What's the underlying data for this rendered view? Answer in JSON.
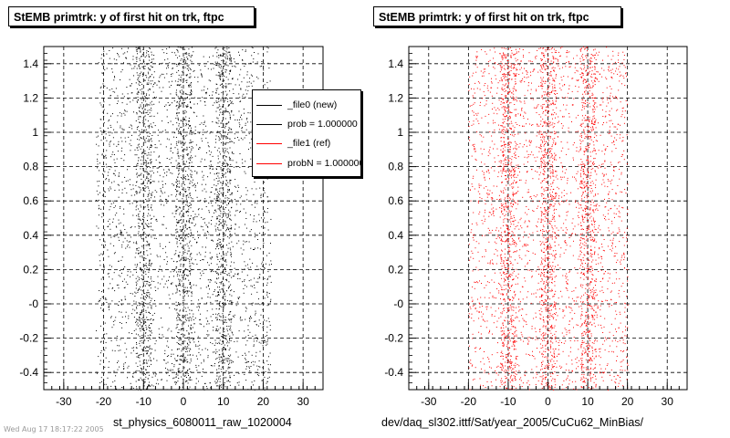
{
  "window": {
    "left_title": "StEMB primtrk: y of first hit on trk, ftpc",
    "right_title": "StEMB primtrk: y of first hit on trk, ftpc",
    "left_footer": "st_physics_6080011_raw_1020004",
    "right_footer": "dev/daq_sl302.ittf/Sat/year_2005/CuCu62_MinBias/",
    "tiny_note": "Wed Aug 17 18:17:22 2005"
  },
  "legend": {
    "entries": [
      {
        "label": "_file0 (new)",
        "color": "#000000"
      },
      {
        "label": "prob = 1.000000",
        "color": "#000000"
      },
      {
        "label": "_file1 (ref)",
        "color": "#ff0000"
      },
      {
        "label": "probN = 1.000000",
        "color": "#ff0000"
      }
    ]
  },
  "chart_data": [
    {
      "type": "scatter",
      "title": "StEMB primtrk: y of first hit on trk, ftpc",
      "xlabel": "st_physics_6080011_raw_1020004",
      "ylabel": "",
      "xlim": [
        -35,
        35
      ],
      "ylim": [
        -0.5,
        1.5
      ],
      "xticks": [
        -30,
        -20,
        -10,
        0,
        10,
        20,
        30
      ],
      "xtick_labels": [
        "-30",
        "-20",
        "-10",
        "0",
        "10",
        "20",
        "30"
      ],
      "yticks": [
        -0.4,
        -0.2,
        0.0,
        0.2,
        0.4,
        0.6,
        0.8,
        1.0,
        1.2,
        1.4
      ],
      "ytick_labels": [
        "-0.4",
        "-0.2",
        "-0",
        "0.2",
        "0.4",
        "0.6",
        "0.8",
        "1",
        "1.2",
        "1.4"
      ],
      "grid": true,
      "legend_position": "top-right",
      "series": [
        {
          "name": "_file0 (new)",
          "color": "#000000",
          "points": 4200,
          "x_range": [
            -22,
            22
          ],
          "y_range": [
            -0.5,
            1.5
          ],
          "dense_bands": [
            [
              -12,
              -8
            ],
            [
              -2,
              2
            ],
            [
              8,
              12
            ]
          ]
        }
      ]
    },
    {
      "type": "scatter",
      "title": "StEMB primtrk: y of first hit on trk, ftpc",
      "xlabel": "dev/daq_sl302.ittf/Sat/year_2005/CuCu62_MinBias/",
      "ylabel": "",
      "xlim": [
        -35,
        35
      ],
      "ylim": [
        -0.5,
        1.5
      ],
      "xticks": [
        -30,
        -20,
        -10,
        0,
        10,
        20,
        30
      ],
      "xtick_labels": [
        "-30",
        "-20",
        "-10",
        "0",
        "10",
        "20",
        "30"
      ],
      "yticks": [
        -0.4,
        -0.2,
        0.0,
        0.2,
        0.4,
        0.6,
        0.8,
        1.0,
        1.2,
        1.4
      ],
      "ytick_labels": [
        "-0.4",
        "-0.2",
        "-0",
        "0.2",
        "0.4",
        "0.6",
        "0.8",
        "1",
        "1.2",
        "1.4"
      ],
      "grid": true,
      "series": [
        {
          "name": "_file1 (ref)",
          "color": "#ff0000",
          "points": 4200,
          "x_range": [
            -20,
            20
          ],
          "y_range": [
            -0.5,
            1.5
          ],
          "dense_bands": [
            [
              -12,
              -8
            ],
            [
              -2,
              2
            ],
            [
              8,
              12
            ]
          ]
        }
      ]
    }
  ]
}
